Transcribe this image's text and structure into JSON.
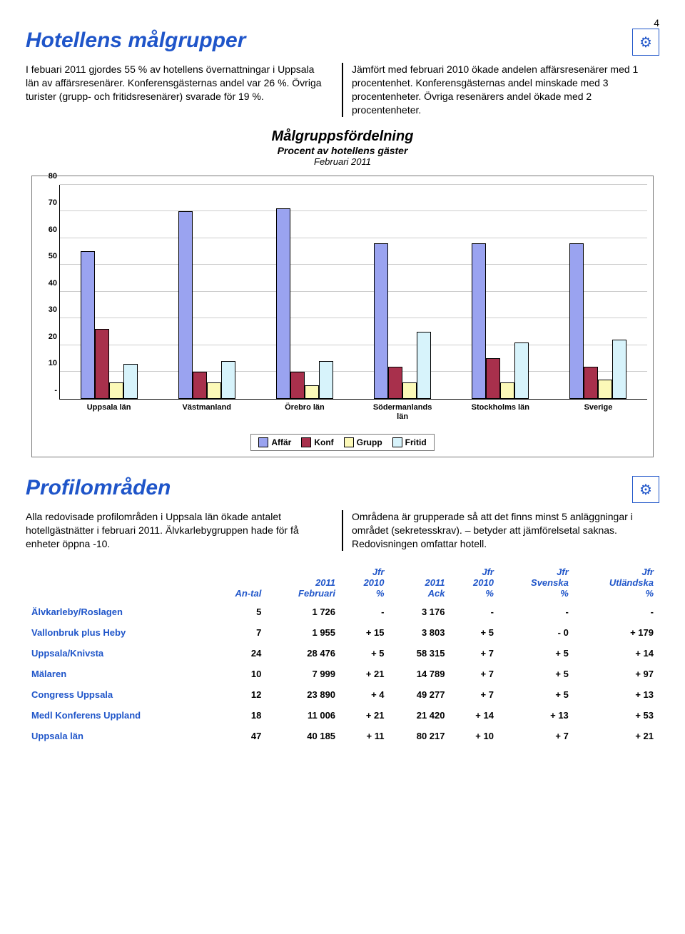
{
  "page_number": "4",
  "section1": {
    "title": "Hotellens målgrupper",
    "left_text": "I febuari 2011 gjordes 55 % av hotellens övernattningar i Uppsala län av affärsresenärer. Konferensgästernas andel var 26 %. Övriga turister (grupp- och fritidsresenärer) svarade för 19 %.",
    "right_text": "Jämfört med februari 2010 ökade andelen affärsresenärer med 1 procentenhet. Konferensgästernas andel minskade med 3 procentenheter. Övriga resenärers andel ökade med 2 procentenheter."
  },
  "chart": {
    "title": "Målgruppsfördelning",
    "subtitle": "Procent av hotellens gäster",
    "period": "Februari 2011",
    "ylim": [
      0,
      80
    ],
    "ytick_step": 10,
    "yticks": [
      "-",
      "10",
      "20",
      "30",
      "40",
      "50",
      "60",
      "70",
      "80"
    ],
    "categories": [
      "Uppsala län",
      "Västmanland",
      "Örebro län",
      "Södermanlands län",
      "Stockholms län",
      "Sverige"
    ],
    "series": [
      {
        "name": "Affär",
        "color": "#9aa3f0"
      },
      {
        "name": "Konf",
        "color": "#a8304c"
      },
      {
        "name": "Grupp",
        "color": "#fcf9b8"
      },
      {
        "name": "Fritid",
        "color": "#d7f3fb"
      }
    ],
    "data": [
      [
        55,
        26,
        6,
        13
      ],
      [
        70,
        10,
        6,
        14
      ],
      [
        71,
        10,
        5,
        14
      ],
      [
        58,
        12,
        6,
        25
      ],
      [
        58,
        15,
        6,
        21
      ],
      [
        58,
        12,
        7,
        22
      ]
    ],
    "border_color": "#7a7a7a",
    "grid_color": "#cccccc",
    "background": "#ffffff",
    "bar_border": "#000000"
  },
  "section2": {
    "title": "Profilområden",
    "left_text": "Alla redovisade profilområden i Uppsala län ökade antalet hotellgästnätter i februari 2011. Älvkarlebygruppen hade för få enheter öppna -10.",
    "right_text": "Områdena är grupperade så att det finns minst 5 anläggningar i området (sekretesskrav). – betyder att jämförelsetal saknas. Redovisningen omfattar hotell."
  },
  "table": {
    "headers": [
      "",
      "An-tal",
      "2011 Februari",
      "Jfr 2010 %",
      "2011 Ack",
      "Jfr 2010 %",
      "Jfr Svenska %",
      "Jfr Utländska %"
    ],
    "rows": [
      [
        "Älvkarleby/Roslagen",
        "5",
        "1 726",
        "-",
        "3 176",
        "-",
        "-",
        "-"
      ],
      [
        "Vallonbruk plus Heby",
        "7",
        "1 955",
        "+ 15",
        "3 803",
        "+ 5",
        "- 0",
        "+ 179"
      ],
      [
        "Uppsala/Knivsta",
        "24",
        "28 476",
        "+ 5",
        "58 315",
        "+ 7",
        "+ 5",
        "+ 14"
      ],
      [
        "Mälaren",
        "10",
        "7 999",
        "+ 21",
        "14 789",
        "+ 7",
        "+ 5",
        "+ 97"
      ],
      [
        "Congress Uppsala",
        "12",
        "23 890",
        "+ 4",
        "49 277",
        "+ 7",
        "+ 5",
        "+ 13"
      ],
      [
        "Medl Konferens Uppland",
        "18",
        "11 006",
        "+ 21",
        "21 420",
        "+ 14",
        "+ 13",
        "+ 53"
      ],
      [
        "Uppsala län",
        "47",
        "40 185",
        "+ 11",
        "80 217",
        "+ 10",
        "+ 7",
        "+ 21"
      ]
    ]
  },
  "icons": {
    "logo_glyph": "⚙"
  }
}
